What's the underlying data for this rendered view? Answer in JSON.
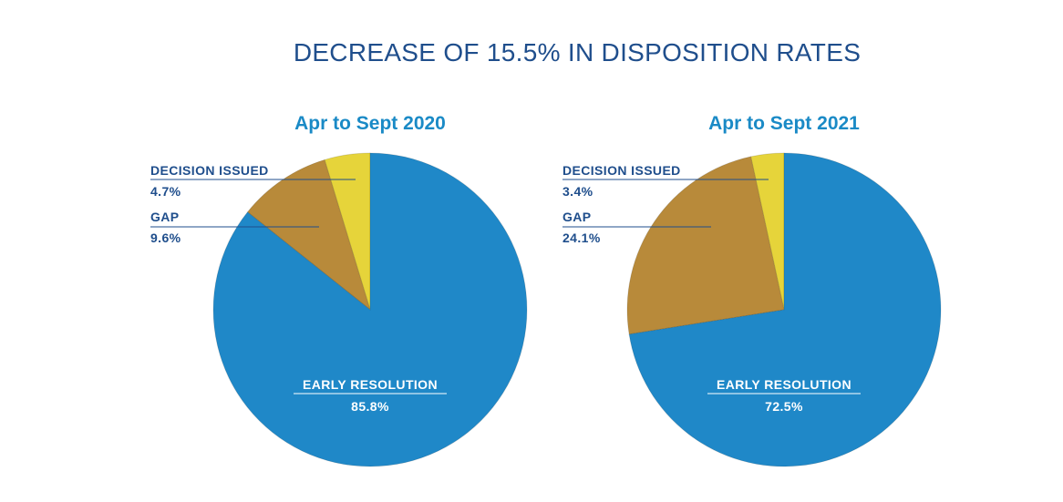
{
  "title": "DECREASE OF 15.5% IN DISPOSITION RATES",
  "colors": {
    "title": "#1f4e8c",
    "subtitle": "#1a8ac6",
    "early_resolution": "#1f88c8",
    "gap": "#b88a3a",
    "decision_issued": "#e6d43a",
    "label": "#1f4e8c"
  },
  "chart_data": [
    {
      "type": "pie",
      "title": "Apr to Sept 2020",
      "slices": [
        {
          "label": "DECISION ISSUED",
          "value": 4.7,
          "value_label": "4.7%"
        },
        {
          "label": "GAP",
          "value": 9.6,
          "value_label": "9.6%"
        },
        {
          "label": "EARLY RESOLUTION",
          "value": 85.8,
          "value_label": "85.8%"
        }
      ]
    },
    {
      "type": "pie",
      "title": "Apr to Sept 2021",
      "slices": [
        {
          "label": "DECISION ISSUED",
          "value": 3.4,
          "value_label": "3.4%"
        },
        {
          "label": "GAP",
          "value": 24.1,
          "value_label": "24.1%"
        },
        {
          "label": "EARLY RESOLUTION",
          "value": 72.5,
          "value_label": "72.5%"
        }
      ]
    }
  ]
}
